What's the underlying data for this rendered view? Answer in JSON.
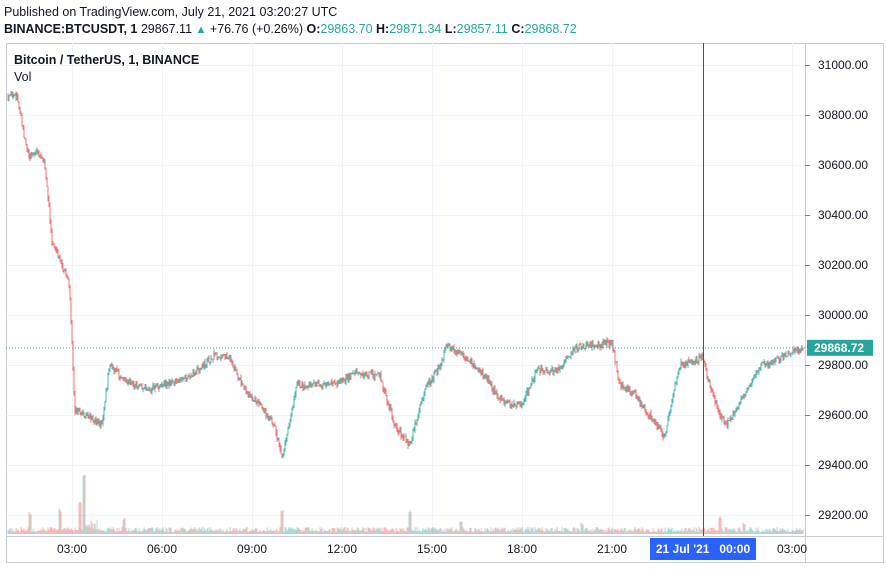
{
  "header": {
    "published": "Published on TradingView.com, July 21, 2021 03:20:27 UTC",
    "symbol": "BINANCE:BTCUSDT, 1",
    "last": "29867.11",
    "change": "+76.76 (+0.26%)",
    "o_label": "O:",
    "o_value": "29863.70",
    "h_label": "H:",
    "h_value": "29871.34",
    "l_label": "L:",
    "l_value": "29857.11",
    "c_label": "C:",
    "c_value": "29868.72"
  },
  "legend": {
    "title": "Bitcoin / TetherUS, 1, BINANCE",
    "vol": "Vol"
  },
  "colors": {
    "up": "#26a69a",
    "down": "#ef5350",
    "axis_highlight": "#2962ff",
    "price_tag": "#26a69a"
  },
  "chart_data": {
    "type": "candlestick",
    "title": "Bitcoin / TetherUS, 1, BINANCE",
    "x_ticks": [
      "03:00",
      "06:00",
      "09:00",
      "12:00",
      "15:00",
      "18:00",
      "21:00",
      "21 Jul '21   00:00",
      "03:00"
    ],
    "y_ticks": [
      "31000.00",
      "30800.00",
      "30600.00",
      "30400.00",
      "30200.00",
      "30000.00",
      "29800.00",
      "29600.00",
      "29400.00",
      "29200.00"
    ],
    "ylim": [
      29140,
      31070
    ],
    "last_price": "29868.72",
    "crosshair_label": "21 Jul '21   00:00",
    "close_path": [
      [
        "01:10",
        30880
      ],
      [
        "01:25",
        30700
      ],
      [
        "01:35",
        30630
      ],
      [
        "01:50",
        30660
      ],
      [
        "02:05",
        30610
      ],
      [
        "02:20",
        30300
      ],
      [
        "02:40",
        30200
      ],
      [
        "02:55",
        30120
      ],
      [
        "03:05",
        29620
      ],
      [
        "03:30",
        29600
      ],
      [
        "04:00",
        29560
      ],
      [
        "04:15",
        29800
      ],
      [
        "04:45",
        29740
      ],
      [
        "05:30",
        29700
      ],
      [
        "06:15",
        29730
      ],
      [
        "07:00",
        29760
      ],
      [
        "07:45",
        29840
      ],
      [
        "08:15",
        29830
      ],
      [
        "08:45",
        29700
      ],
      [
        "09:15",
        29640
      ],
      [
        "09:45",
        29560
      ],
      [
        "10:00",
        29420
      ],
      [
        "10:30",
        29720
      ],
      [
        "11:00",
        29720
      ],
      [
        "11:45",
        29720
      ],
      [
        "12:30",
        29770
      ],
      [
        "13:15",
        29760
      ],
      [
        "13:45",
        29560
      ],
      [
        "14:15",
        29480
      ],
      [
        "14:45",
        29700
      ],
      [
        "15:15",
        29790
      ],
      [
        "15:30",
        29880
      ],
      [
        "16:00",
        29840
      ],
      [
        "16:45",
        29760
      ],
      [
        "17:15",
        29660
      ],
      [
        "17:45",
        29640
      ],
      [
        "18:00",
        29640
      ],
      [
        "18:30",
        29780
      ],
      [
        "19:15",
        29780
      ],
      [
        "19:45",
        29870
      ],
      [
        "20:30",
        29880
      ],
      [
        "21:00",
        29890
      ],
      [
        "21:15",
        29720
      ],
      [
        "21:45",
        29680
      ],
      [
        "22:15",
        29600
      ],
      [
        "22:45",
        29510
      ],
      [
        "23:15",
        29800
      ],
      [
        "23:45",
        29820
      ],
      [
        "00:00",
        29830
      ],
      [
        "00:30",
        29620
      ],
      [
        "00:50",
        29560
      ],
      [
        "01:10",
        29630
      ],
      [
        "01:30",
        29700
      ],
      [
        "02:00",
        29800
      ],
      [
        "02:30",
        29820
      ],
      [
        "03:10",
        29860
      ]
    ],
    "volume_scale_note": "small bars at bottom of chart",
    "grid": true
  }
}
